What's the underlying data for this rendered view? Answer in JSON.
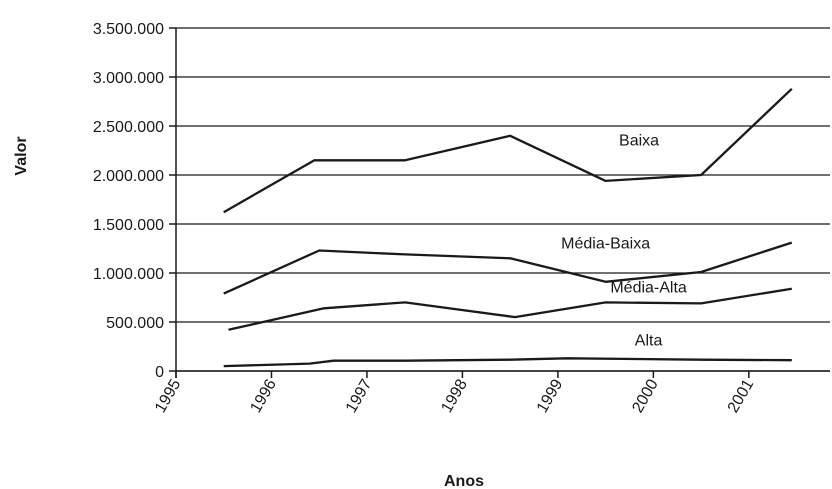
{
  "chart_data": {
    "type": "line",
    "title": "",
    "xlabel": "Anos",
    "ylabel": "Valor",
    "xlim": [
      1995,
      2001.85
    ],
    "ylim": [
      0,
      3500000
    ],
    "grid": true,
    "y_ticks": [
      "0",
      "500.000",
      "1.000.000",
      "1.500.000",
      "2.000.000",
      "2.500.000",
      "3.000.000",
      "3.500.000"
    ],
    "y_tick_values": [
      0,
      500000,
      1000000,
      1500000,
      2000000,
      2500000,
      3000000,
      3500000
    ],
    "x_ticks": [
      "1995",
      "1996",
      "1997",
      "1998",
      "1999",
      "2000",
      "2001"
    ],
    "x_tick_values": [
      1995,
      1996,
      1997,
      1998,
      1999,
      2000,
      2001
    ],
    "series": [
      {
        "name": "Baixa",
        "x": [
          1995.5,
          1996.45,
          1997.4,
          1998.5,
          1999.5,
          2000.5,
          2001.45
        ],
        "values": [
          1620000,
          2150000,
          2150000,
          2400000,
          1940000,
          2000000,
          2880000
        ],
        "label_anchor": [
          1999.85,
          2300000
        ]
      },
      {
        "name": "Média-Baixa",
        "x": [
          1995.5,
          1996.5,
          1997.4,
          1998.5,
          1999.5,
          2000.5,
          2001.45
        ],
        "values": [
          790000,
          1230000,
          1190000,
          1150000,
          910000,
          1010000,
          1310000
        ],
        "label_anchor": [
          1999.5,
          1250000
        ]
      },
      {
        "name": "Média-Alta",
        "x": [
          1995.55,
          1996.55,
          1997.4,
          1998.55,
          1999.5,
          2000.5,
          2001.45
        ],
        "values": [
          420000,
          640000,
          700000,
          550000,
          700000,
          690000,
          840000
        ],
        "label_anchor": [
          1999.95,
          800000
        ]
      },
      {
        "name": "Alta",
        "x": [
          1995.5,
          1996.4,
          1996.65,
          1997.4,
          1998.5,
          1999.1,
          2000.5,
          2001.45
        ],
        "values": [
          50000,
          75000,
          105000,
          105000,
          115000,
          130000,
          115000,
          110000
        ],
        "label_anchor": [
          1999.95,
          260000
        ]
      }
    ]
  }
}
